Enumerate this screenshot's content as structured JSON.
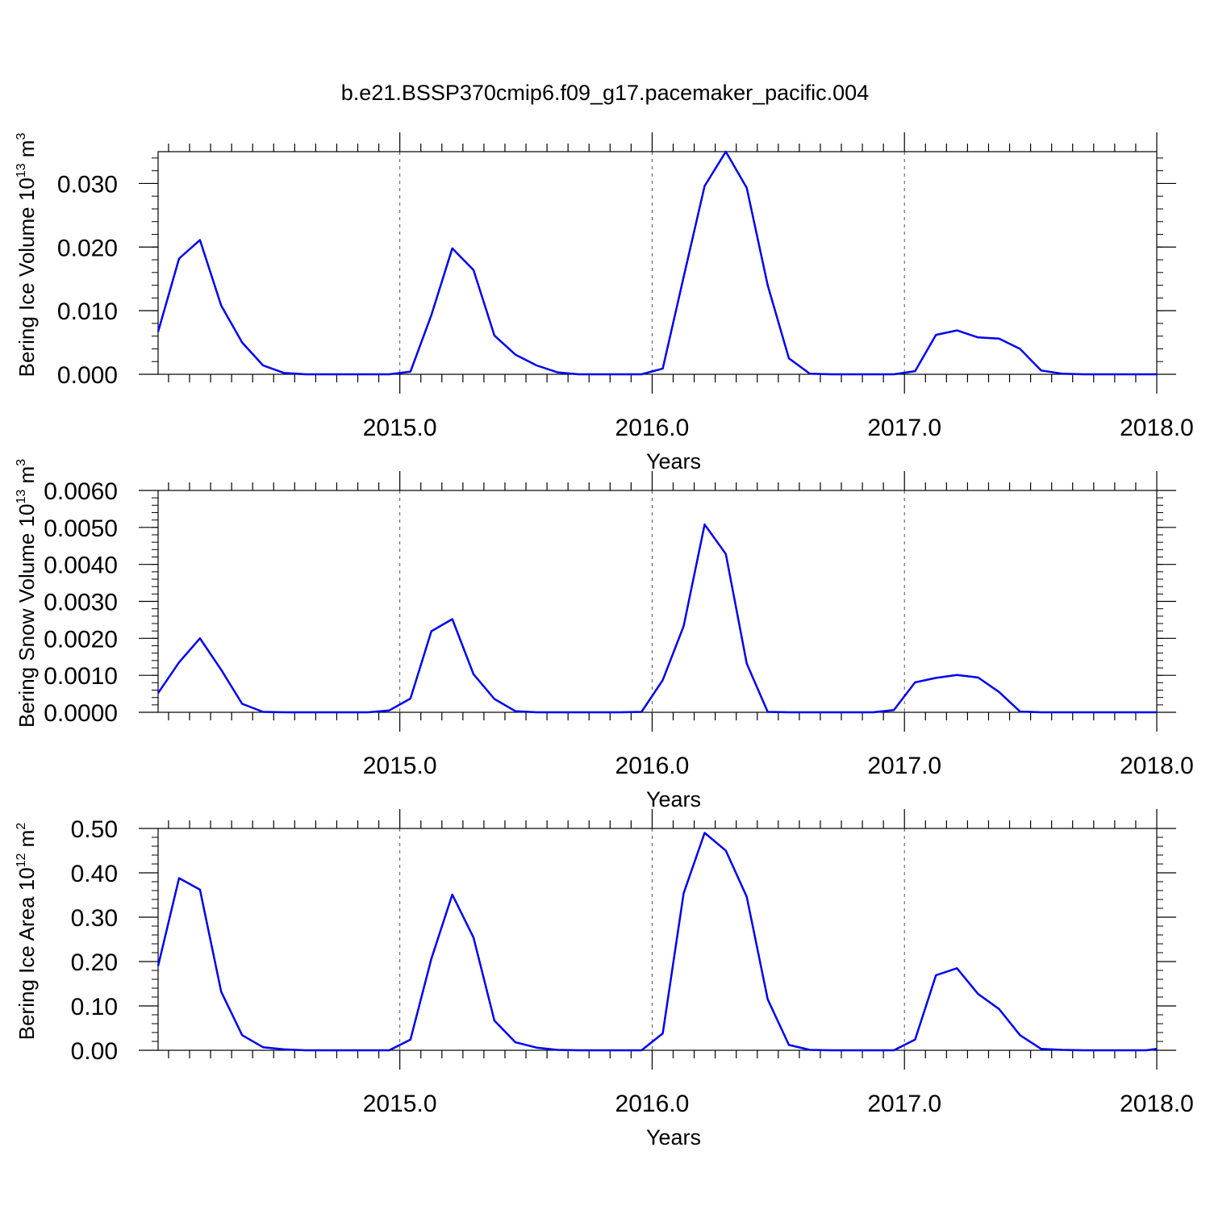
{
  "title": "b.e21.BSSP370cmip6.f09_g17.pacemaker_pacific.004",
  "colors": {
    "line": "#0000ee",
    "axes": "#000000",
    "grid": "#555555"
  },
  "chart_data": [
    {
      "type": "line",
      "xlabel": "Years",
      "ylabel": "Bering Ice Volume 10",
      "ylabel_exp": "13",
      "ylabel_unit": " m",
      "ylabel_unit_exp": "3",
      "xlim": [
        2014.042,
        2018.0
      ],
      "ylim": [
        0,
        0.035
      ],
      "yticks": [
        0.0,
        0.01,
        0.02,
        0.03
      ],
      "yticklabels": [
        "0.000",
        "0.010",
        "0.020",
        "0.030"
      ],
      "xticks": [
        2015.0,
        2016.0,
        2017.0,
        2018.0
      ],
      "xticklabels": [
        "2015.0",
        "2016.0",
        "2017.0",
        "2018.0"
      ],
      "vertical_reference_lines": [
        2015.0,
        2016.0,
        2017.0
      ],
      "series": [
        {
          "x": [
            2014.042,
            2014.125,
            2014.208,
            2014.292,
            2014.375,
            2014.458,
            2014.542,
            2014.625,
            2014.708,
            2014.792,
            2014.875,
            2014.958,
            2015.042,
            2015.125,
            2015.208,
            2015.292,
            2015.375,
            2015.458,
            2015.542,
            2015.625,
            2015.708,
            2015.792,
            2015.875,
            2015.958,
            2016.042,
            2016.125,
            2016.208,
            2016.292,
            2016.375,
            2016.458,
            2016.542,
            2016.625,
            2016.708,
            2016.792,
            2016.875,
            2016.958,
            2017.042,
            2017.125,
            2017.208,
            2017.292,
            2017.375,
            2017.458,
            2017.542,
            2017.625,
            2017.708,
            2017.792,
            2017.875,
            2017.958,
            2018.0
          ],
          "y": [
            0.0067,
            0.0182,
            0.0211,
            0.0108,
            0.005,
            0.0014,
            0.0002,
            0.0,
            0.0,
            0.0,
            0.0,
            0.0,
            0.0004,
            0.0093,
            0.0198,
            0.0164,
            0.0061,
            0.0031,
            0.0014,
            0.0003,
            0.0,
            0.0,
            0.0,
            0.0,
            0.0009,
            0.0153,
            0.0296,
            0.035,
            0.0293,
            0.014,
            0.0025,
            0.0001,
            0.0,
            0.0,
            0.0,
            0.0,
            0.0005,
            0.0062,
            0.0069,
            0.0058,
            0.0056,
            0.004,
            0.0006,
            0.0001,
            0.0,
            0.0,
            0.0,
            0.0,
            0.0
          ]
        }
      ]
    },
    {
      "type": "line",
      "xlabel": "Years",
      "ylabel": "Bering Snow Volume 10",
      "ylabel_exp": "13",
      "ylabel_unit": " m",
      "ylabel_unit_exp": "3",
      "xlim": [
        2014.042,
        2018.0
      ],
      "ylim": [
        0,
        0.006
      ],
      "yticks": [
        0.0,
        0.001,
        0.002,
        0.003,
        0.004,
        0.005,
        0.006
      ],
      "yticklabels": [
        "0.0000",
        "0.0010",
        "0.0020",
        "0.0030",
        "0.0040",
        "0.0050",
        "0.0060"
      ],
      "xticks": [
        2015.0,
        2016.0,
        2017.0,
        2018.0
      ],
      "xticklabels": [
        "2015.0",
        "2016.0",
        "2017.0",
        "2018.0"
      ],
      "vertical_reference_lines": [
        2015.0,
        2016.0,
        2017.0
      ],
      "series": [
        {
          "x": [
            2014.042,
            2014.125,
            2014.208,
            2014.292,
            2014.375,
            2014.458,
            2014.542,
            2014.625,
            2014.708,
            2014.792,
            2014.875,
            2014.958,
            2015.042,
            2015.125,
            2015.208,
            2015.292,
            2015.375,
            2015.458,
            2015.542,
            2015.625,
            2015.708,
            2015.792,
            2015.875,
            2015.958,
            2016.042,
            2016.125,
            2016.208,
            2016.292,
            2016.375,
            2016.458,
            2016.542,
            2016.625,
            2016.708,
            2016.792,
            2016.875,
            2016.958,
            2017.042,
            2017.125,
            2017.208,
            2017.292,
            2017.375,
            2017.458,
            2017.542,
            2017.625,
            2017.708,
            2017.792,
            2017.875,
            2017.958,
            2018.0
          ],
          "y": [
            0.00052,
            0.00135,
            0.002,
            0.00115,
            0.00023,
            1e-05,
            0.0,
            0.0,
            0.0,
            0.0,
            0.0,
            5e-05,
            0.00037,
            0.00219,
            0.00252,
            0.00103,
            0.00036,
            3e-05,
            0.0,
            0.0,
            0.0,
            0.0,
            0.0,
            1e-05,
            0.00087,
            0.00233,
            0.00508,
            0.00428,
            0.00132,
            1e-05,
            0.0,
            0.0,
            0.0,
            0.0,
            0.0,
            6e-05,
            0.00081,
            0.00093,
            0.00101,
            0.00094,
            0.00055,
            2e-05,
            0.0,
            0.0,
            0.0,
            0.0,
            0.0,
            0.0,
            0.0
          ]
        }
      ]
    },
    {
      "type": "line",
      "xlabel": "Years",
      "ylabel": "Bering Ice Area 10",
      "ylabel_exp": "12",
      "ylabel_unit": " m",
      "ylabel_unit_exp": "2",
      "xlim": [
        2014.042,
        2018.0
      ],
      "ylim": [
        0,
        0.5
      ],
      "yticks": [
        0.0,
        0.1,
        0.2,
        0.3,
        0.4,
        0.5
      ],
      "yticklabels": [
        "0.00",
        "0.10",
        "0.20",
        "0.30",
        "0.40",
        "0.50"
      ],
      "xticks": [
        2015.0,
        2016.0,
        2017.0,
        2018.0
      ],
      "xticklabels": [
        "2015.0",
        "2016.0",
        "2017.0",
        "2018.0"
      ],
      "vertical_reference_lines": [
        2015.0,
        2016.0,
        2017.0
      ],
      "series": [
        {
          "x": [
            2014.042,
            2014.125,
            2014.208,
            2014.292,
            2014.375,
            2014.458,
            2014.542,
            2014.625,
            2014.708,
            2014.792,
            2014.875,
            2014.958,
            2015.042,
            2015.125,
            2015.208,
            2015.292,
            2015.375,
            2015.458,
            2015.542,
            2015.625,
            2015.708,
            2015.792,
            2015.875,
            2015.958,
            2016.042,
            2016.125,
            2016.208,
            2016.292,
            2016.375,
            2016.458,
            2016.542,
            2016.625,
            2016.708,
            2016.792,
            2016.875,
            2016.958,
            2017.042,
            2017.125,
            2017.208,
            2017.292,
            2017.375,
            2017.458,
            2017.542,
            2017.625,
            2017.708,
            2017.792,
            2017.875,
            2017.958,
            2018.0
          ],
          "y": [
            0.19,
            0.388,
            0.362,
            0.132,
            0.034,
            0.007,
            0.002,
            0.0,
            0.0,
            0.0,
            0.0,
            0.0,
            0.024,
            0.206,
            0.351,
            0.254,
            0.067,
            0.018,
            0.006,
            0.001,
            0.0,
            0.0,
            0.0,
            0.0,
            0.038,
            0.354,
            0.49,
            0.45,
            0.346,
            0.115,
            0.012,
            0.001,
            0.0,
            0.0,
            0.0,
            0.0,
            0.024,
            0.169,
            0.185,
            0.127,
            0.093,
            0.034,
            0.003,
            0.001,
            0.0,
            0.0,
            0.0,
            0.0,
            0.003
          ]
        }
      ]
    }
  ]
}
